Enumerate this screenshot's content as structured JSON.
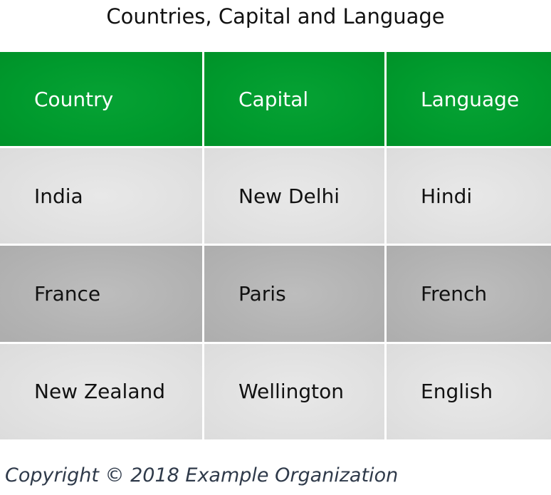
{
  "page": {
    "title": "Countries, Capital and Language"
  },
  "table": {
    "headers": [
      "Country",
      "Capital",
      "Language"
    ],
    "rows": [
      [
        "India",
        "New Delhi",
        "Hindi"
      ],
      [
        "France",
        "Paris",
        "French"
      ],
      [
        "New Zealand",
        "Wellington",
        "English"
      ]
    ]
  },
  "footer": {
    "copyright": "Copyright © 2018 Example Organization"
  },
  "colors": {
    "header_bg": "#009a2d",
    "header_text": "#ffffff",
    "row_light_bg": "#e1e1e1",
    "row_dark_bg": "#b3b3b3",
    "footer_text": "#2f3a4a"
  }
}
